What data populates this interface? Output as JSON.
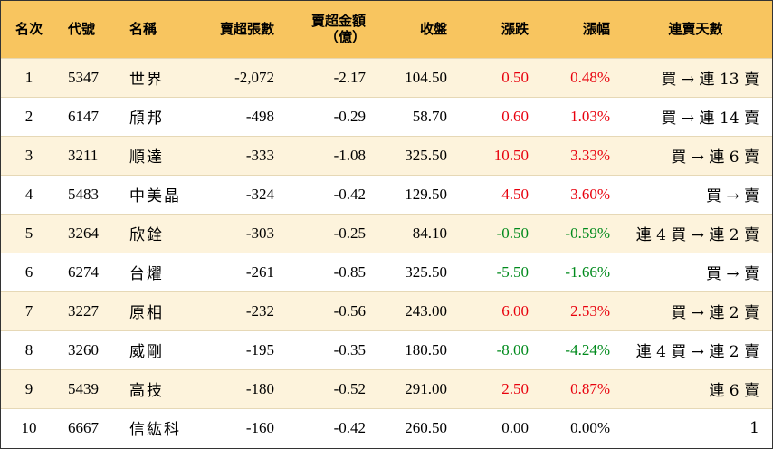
{
  "headers": {
    "rank": "名次",
    "code": "代號",
    "name": "名稱",
    "net_sell_lots": "賣超張數",
    "net_sell_amount_line1": "賣超金額",
    "net_sell_amount_line2": "（億）",
    "close": "收盤",
    "change": "漲跌",
    "change_pct": "漲幅",
    "streak": "連賣天數"
  },
  "rows": [
    {
      "rank": "1",
      "code": "5347",
      "name": "世界",
      "lots": "-2,072",
      "amount": "-2.17",
      "close": "104.50",
      "change": "0.50",
      "pct": "0.48%",
      "streak": "買 → 連 13 賣",
      "trend": "up"
    },
    {
      "rank": "2",
      "code": "6147",
      "name": "頎邦",
      "lots": "-498",
      "amount": "-0.29",
      "close": "58.70",
      "change": "0.60",
      "pct": "1.03%",
      "streak": "買 → 連 14 賣",
      "trend": "up"
    },
    {
      "rank": "3",
      "code": "3211",
      "name": "順達",
      "lots": "-333",
      "amount": "-1.08",
      "close": "325.50",
      "change": "10.50",
      "pct": "3.33%",
      "streak": "買 → 連 6 賣",
      "trend": "up"
    },
    {
      "rank": "4",
      "code": "5483",
      "name": "中美晶",
      "lots": "-324",
      "amount": "-0.42",
      "close": "129.50",
      "change": "4.50",
      "pct": "3.60%",
      "streak": "買 → 賣",
      "trend": "up"
    },
    {
      "rank": "5",
      "code": "3264",
      "name": "欣銓",
      "lots": "-303",
      "amount": "-0.25",
      "close": "84.10",
      "change": "-0.50",
      "pct": "-0.59%",
      "streak": "連 4 買 → 連 2 賣",
      "trend": "down"
    },
    {
      "rank": "6",
      "code": "6274",
      "name": "台燿",
      "lots": "-261",
      "amount": "-0.85",
      "close": "325.50",
      "change": "-5.50",
      "pct": "-1.66%",
      "streak": "買 → 賣",
      "trend": "down"
    },
    {
      "rank": "7",
      "code": "3227",
      "name": "原相",
      "lots": "-232",
      "amount": "-0.56",
      "close": "243.00",
      "change": "6.00",
      "pct": "2.53%",
      "streak": "買 → 連 2 賣",
      "trend": "up"
    },
    {
      "rank": "8",
      "code": "3260",
      "name": "威剛",
      "lots": "-195",
      "amount": "-0.35",
      "close": "180.50",
      "change": "-8.00",
      "pct": "-4.24%",
      "streak": "連 4 買 → 連 2 賣",
      "trend": "down"
    },
    {
      "rank": "9",
      "code": "5439",
      "name": "高技",
      "lots": "-180",
      "amount": "-0.52",
      "close": "291.00",
      "change": "2.50",
      "pct": "0.87%",
      "streak": "連 6 賣",
      "trend": "up"
    },
    {
      "rank": "10",
      "code": "6667",
      "name": "信紘科",
      "lots": "-160",
      "amount": "-0.42",
      "close": "260.50",
      "change": "0.00",
      "pct": "0.00%",
      "streak": "1",
      "trend": "flat"
    }
  ],
  "colors": {
    "header_bg": "#f8c55f",
    "odd_row_bg": "#fdf3dc",
    "even_row_bg": "#ffffff",
    "up": "#e8000d",
    "down": "#008a1c",
    "flat": "#000000"
  }
}
